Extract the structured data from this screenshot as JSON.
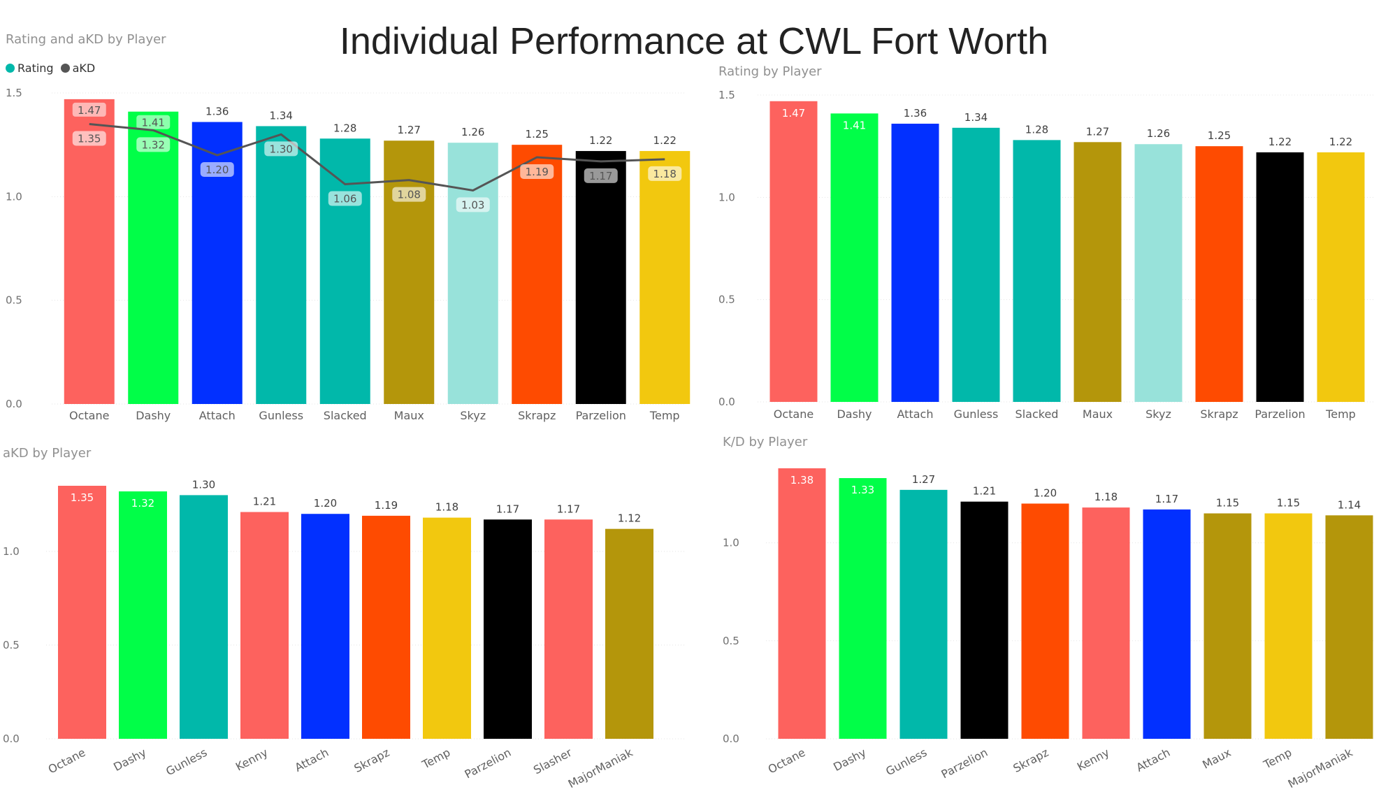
{
  "page_title": "Individual Performance at CWL Fort Worth",
  "colors": {
    "Octane": "#FD625E",
    "Dashy": "#01FE48",
    "Attach": "#0230FF",
    "Gunless": "#01B8AA",
    "Slacked": "#01B8AA",
    "Maux": "#B4960B",
    "Skyz": "#98E2DA",
    "Skrapz": "#FE4B01",
    "Parzelion": "#000000",
    "Temp": "#F2C80F",
    "Kenny": "#FD625E",
    "Slasher": "#FD625E",
    "MajorManiak": "#B4960B",
    "akd_line": "#555555",
    "legend_rating": "#01B8AA",
    "legend_akd": "#555555"
  },
  "chart_data": [
    {
      "id": "rating-akd",
      "type": "bar",
      "title": "Rating and aKD by Player",
      "legend": {
        "position": "top-left",
        "items": [
          "Rating",
          "aKD"
        ]
      },
      "categories": [
        "Octane",
        "Dashy",
        "Attach",
        "Gunless",
        "Slacked",
        "Maux",
        "Skyz",
        "Skrapz",
        "Parzelion",
        "Temp"
      ],
      "series": [
        {
          "name": "Rating",
          "type": "bar",
          "values": [
            1.47,
            1.41,
            1.36,
            1.34,
            1.28,
            1.27,
            1.26,
            1.25,
            1.22,
            1.22
          ]
        },
        {
          "name": "aKD",
          "type": "line",
          "values": [
            1.35,
            1.32,
            1.2,
            1.3,
            1.06,
            1.08,
            1.03,
            1.19,
            1.17,
            1.18
          ]
        }
      ],
      "ylim": [
        0,
        1.5
      ],
      "yticks": [
        "0.0",
        "0.5",
        "1.0",
        "1.5"
      ],
      "ytick_values": [
        0,
        0.5,
        1.0,
        1.5
      ],
      "value_labels": {
        "Rating": [
          "1.47",
          "1.41",
          "1.36",
          "1.34",
          "1.28",
          "1.27",
          "1.26",
          "1.25",
          "1.22",
          "1.22"
        ],
        "aKD": [
          "1.35",
          "1.32",
          "1.20",
          "1.30",
          "1.06",
          "1.08",
          "1.03",
          "1.19",
          "1.17",
          "1.18"
        ]
      },
      "grid": true
    },
    {
      "id": "rating",
      "type": "bar",
      "title": "Rating by Player",
      "categories": [
        "Octane",
        "Dashy",
        "Attach",
        "Gunless",
        "Slacked",
        "Maux",
        "Skyz",
        "Skrapz",
        "Parzelion",
        "Temp"
      ],
      "values": [
        1.47,
        1.41,
        1.36,
        1.34,
        1.28,
        1.27,
        1.26,
        1.25,
        1.22,
        1.22
      ],
      "value_labels": [
        "1.47",
        "1.41",
        "1.36",
        "1.34",
        "1.28",
        "1.27",
        "1.26",
        "1.25",
        "1.22",
        "1.22"
      ],
      "ylim": [
        0,
        1.5
      ],
      "yticks": [
        "0.0",
        "0.5",
        "1.0",
        "1.5"
      ],
      "ytick_values": [
        0,
        0.5,
        1.0,
        1.5
      ],
      "grid": true
    },
    {
      "id": "akd",
      "type": "bar",
      "title": "aKD by Player",
      "categories": [
        "Octane",
        "Dashy",
        "Gunless",
        "Kenny",
        "Attach",
        "Skrapz",
        "Temp",
        "Parzelion",
        "Slasher",
        "MajorManiak"
      ],
      "values": [
        1.35,
        1.32,
        1.3,
        1.21,
        1.2,
        1.19,
        1.18,
        1.17,
        1.17,
        1.12
      ],
      "value_labels": [
        "1.35",
        "1.32",
        "1.30",
        "1.21",
        "1.20",
        "1.19",
        "1.18",
        "1.17",
        "1.17",
        "1.12"
      ],
      "ylim": [
        0,
        1.35
      ],
      "yticks": [
        "0.0",
        "0.5",
        "1.0"
      ],
      "ytick_values": [
        0,
        0.5,
        1.0
      ],
      "grid": true
    },
    {
      "id": "kd",
      "type": "bar",
      "title": "K/D by Player",
      "categories": [
        "Octane",
        "Dashy",
        "Gunless",
        "Parzelion",
        "Skrapz",
        "Kenny",
        "Attach",
        "Maux",
        "Temp",
        "MajorManiak"
      ],
      "values": [
        1.38,
        1.33,
        1.27,
        1.21,
        1.2,
        1.18,
        1.17,
        1.15,
        1.15,
        1.14
      ],
      "value_labels": [
        "1.38",
        "1.33",
        "1.27",
        "1.21",
        "1.20",
        "1.18",
        "1.17",
        "1.15",
        "1.15",
        "1.14"
      ],
      "ylim": [
        0,
        1.38
      ],
      "yticks": [
        "0.0",
        "0.5",
        "1.0"
      ],
      "ytick_values": [
        0,
        0.5,
        1.0
      ],
      "grid": true
    }
  ]
}
